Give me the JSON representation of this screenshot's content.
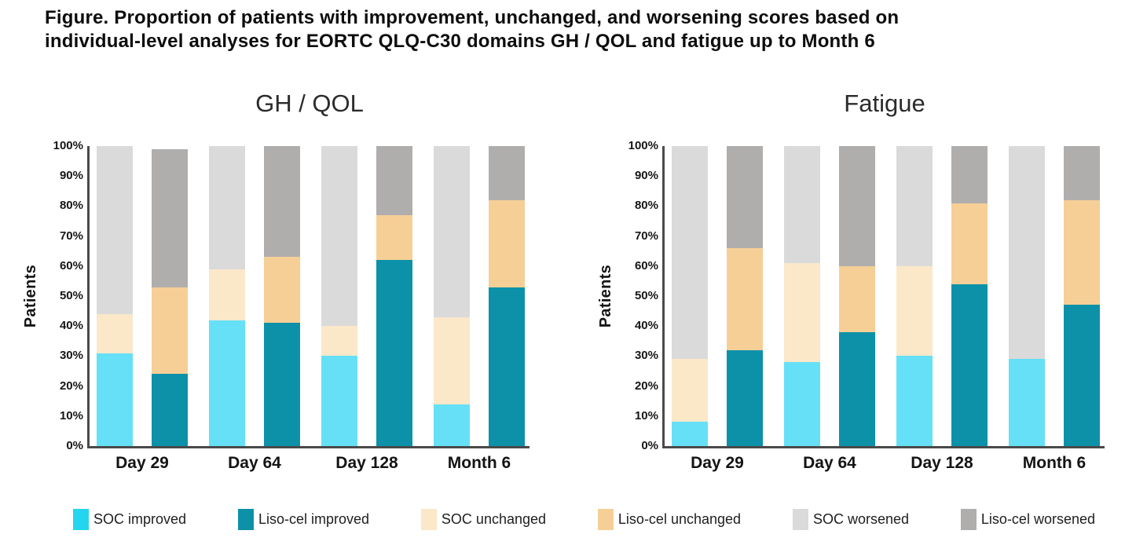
{
  "header": {
    "title_lines": [
      "Figure. Proportion of patients with improvement, unchanged, and worsening scores based on",
      "individual-level analyses for EORTC QLQ-C30 domains GH / QOL and fatigue up to Month 6"
    ]
  },
  "y_axis": {
    "label": "Patients",
    "ticks": [
      "100%",
      "90%",
      "80%",
      "70%",
      "60%",
      "50%",
      "40%",
      "30%",
      "20%",
      "10%",
      "0%"
    ]
  },
  "colors": {
    "SOC improved": "#66E0F6",
    "Liso-cel improved": "#0D91A9",
    "SOC unchanged": "#FAE8C9",
    "Liso-cel unchanged": "#F6CF96",
    "SOC worsened": "#DBDADA",
    "Liso-cel worsened": "#B0ADAD"
  },
  "legend": {
    "items": [
      "SOC improved",
      "Liso-cel improved",
      "SOC unchanged",
      "Liso-cel unchanged",
      "SOC worsened",
      "Liso-cel worsened"
    ],
    "swatch_overrides": {
      "SOC improved": "#24D5EF"
    }
  },
  "chart_data": [
    {
      "type": "bar",
      "subtype": "stacked-percent",
      "title": "GH / QOL",
      "ylabel": "Patients",
      "ylim": [
        0,
        100
      ],
      "grid": false,
      "legend_position": "bottom",
      "categories": [
        "Day 29",
        "Day 64",
        "Day 128",
        "Month 6"
      ],
      "series": [
        {
          "name": "SOC improved",
          "values": [
            31,
            42,
            30,
            14
          ]
        },
        {
          "name": "SOC unchanged",
          "values": [
            13,
            17,
            10,
            29
          ]
        },
        {
          "name": "SOC worsened",
          "values": [
            56,
            41,
            60,
            57
          ]
        },
        {
          "name": "Liso-cel improved",
          "values": [
            24,
            41,
            62,
            53
          ]
        },
        {
          "name": "Liso-cel unchanged",
          "values": [
            29,
            22,
            15,
            29
          ]
        },
        {
          "name": "Liso-cel worsened",
          "values": [
            46,
            37,
            23,
            18
          ]
        }
      ]
    },
    {
      "type": "bar",
      "subtype": "stacked-percent",
      "title": "Fatigue",
      "ylabel": "Patients",
      "ylim": [
        0,
        100
      ],
      "grid": false,
      "legend_position": "bottom",
      "categories": [
        "Day 29",
        "Day 64",
        "Day 128",
        "Month 6"
      ],
      "series": [
        {
          "name": "SOC improved",
          "values": [
            8,
            28,
            30,
            29
          ]
        },
        {
          "name": "SOC unchanged",
          "values": [
            21,
            33,
            30,
            0
          ]
        },
        {
          "name": "SOC worsened",
          "values": [
            71,
            39,
            40,
            71
          ]
        },
        {
          "name": "Liso-cel improved",
          "values": [
            32,
            38,
            54,
            47
          ]
        },
        {
          "name": "Liso-cel unchanged",
          "values": [
            34,
            22,
            27,
            35
          ]
        },
        {
          "name": "Liso-cel worsened",
          "values": [
            34,
            40,
            19,
            18
          ]
        }
      ]
    }
  ]
}
